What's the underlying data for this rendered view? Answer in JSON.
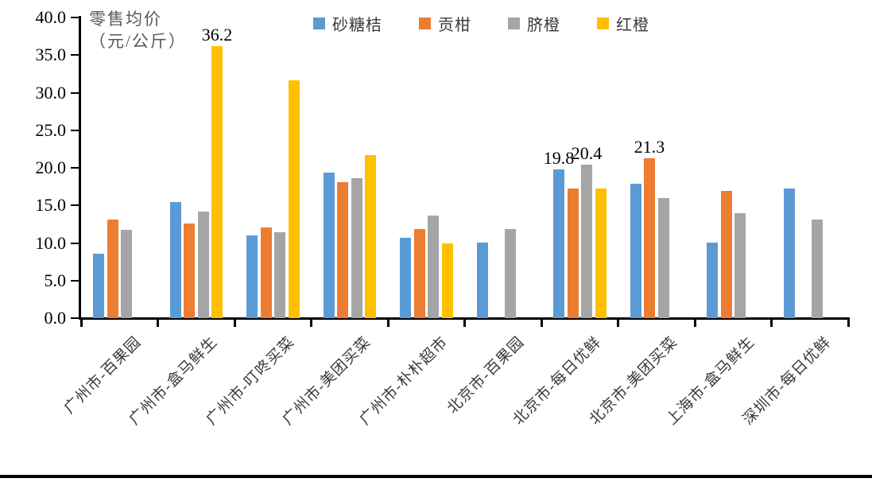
{
  "page": {
    "background": "#ffffff",
    "bottom_rule_color": "#000000"
  },
  "chart_data": {
    "type": "bar",
    "axis_title_line1": "零售均价",
    "axis_title_line2": "（元/公斤）",
    "ylabel": "零售均价（元/公斤）",
    "ylim": [
      0,
      40
    ],
    "y_tick_step": 5,
    "y_tick_labels": [
      "40.0",
      "35.0",
      "30.0",
      "25.0",
      "20.0",
      "15.0",
      "10.0",
      "5.0",
      "0.0"
    ],
    "grid": false,
    "legend_position": "top",
    "axis_color": "#000000",
    "categories": [
      "广州市-百果园",
      "广州市-盒马鲜生",
      "广州市-叮咚买菜",
      "广州市-美团买菜",
      "广州市-朴朴超市",
      "北京市-百果园",
      "北京市-每日优鲜",
      "北京市-美团买菜",
      "上海市-盒马鲜生",
      "深圳市-每日优鲜"
    ],
    "series": [
      {
        "name": "砂糖桔",
        "color": "#5B9BD5",
        "values": [
          8.6,
          15.5,
          11.0,
          19.4,
          10.7,
          10.1,
          19.8,
          17.9,
          10.1,
          17.2
        ]
      },
      {
        "name": "贡柑",
        "color": "#ED7D31",
        "values": [
          13.1,
          12.6,
          12.1,
          18.1,
          11.9,
          null,
          17.2,
          21.3,
          16.9,
          null
        ]
      },
      {
        "name": "脐橙",
        "color": "#A5A5A5",
        "values": [
          11.7,
          14.2,
          11.4,
          18.6,
          13.7,
          11.9,
          20.4,
          16.0,
          14.0,
          13.1
        ]
      },
      {
        "name": "红橙",
        "color": "#FFC000",
        "values": [
          null,
          36.2,
          31.6,
          21.7,
          9.9,
          null,
          17.3,
          null,
          null,
          null
        ]
      }
    ],
    "data_labels": [
      {
        "series": 3,
        "category": 1,
        "text": "36.2"
      },
      {
        "series": 0,
        "category": 6,
        "text": "19.8"
      },
      {
        "series": 2,
        "category": 6,
        "text": "20.4"
      },
      {
        "series": 1,
        "category": 7,
        "text": "21.3"
      }
    ]
  }
}
